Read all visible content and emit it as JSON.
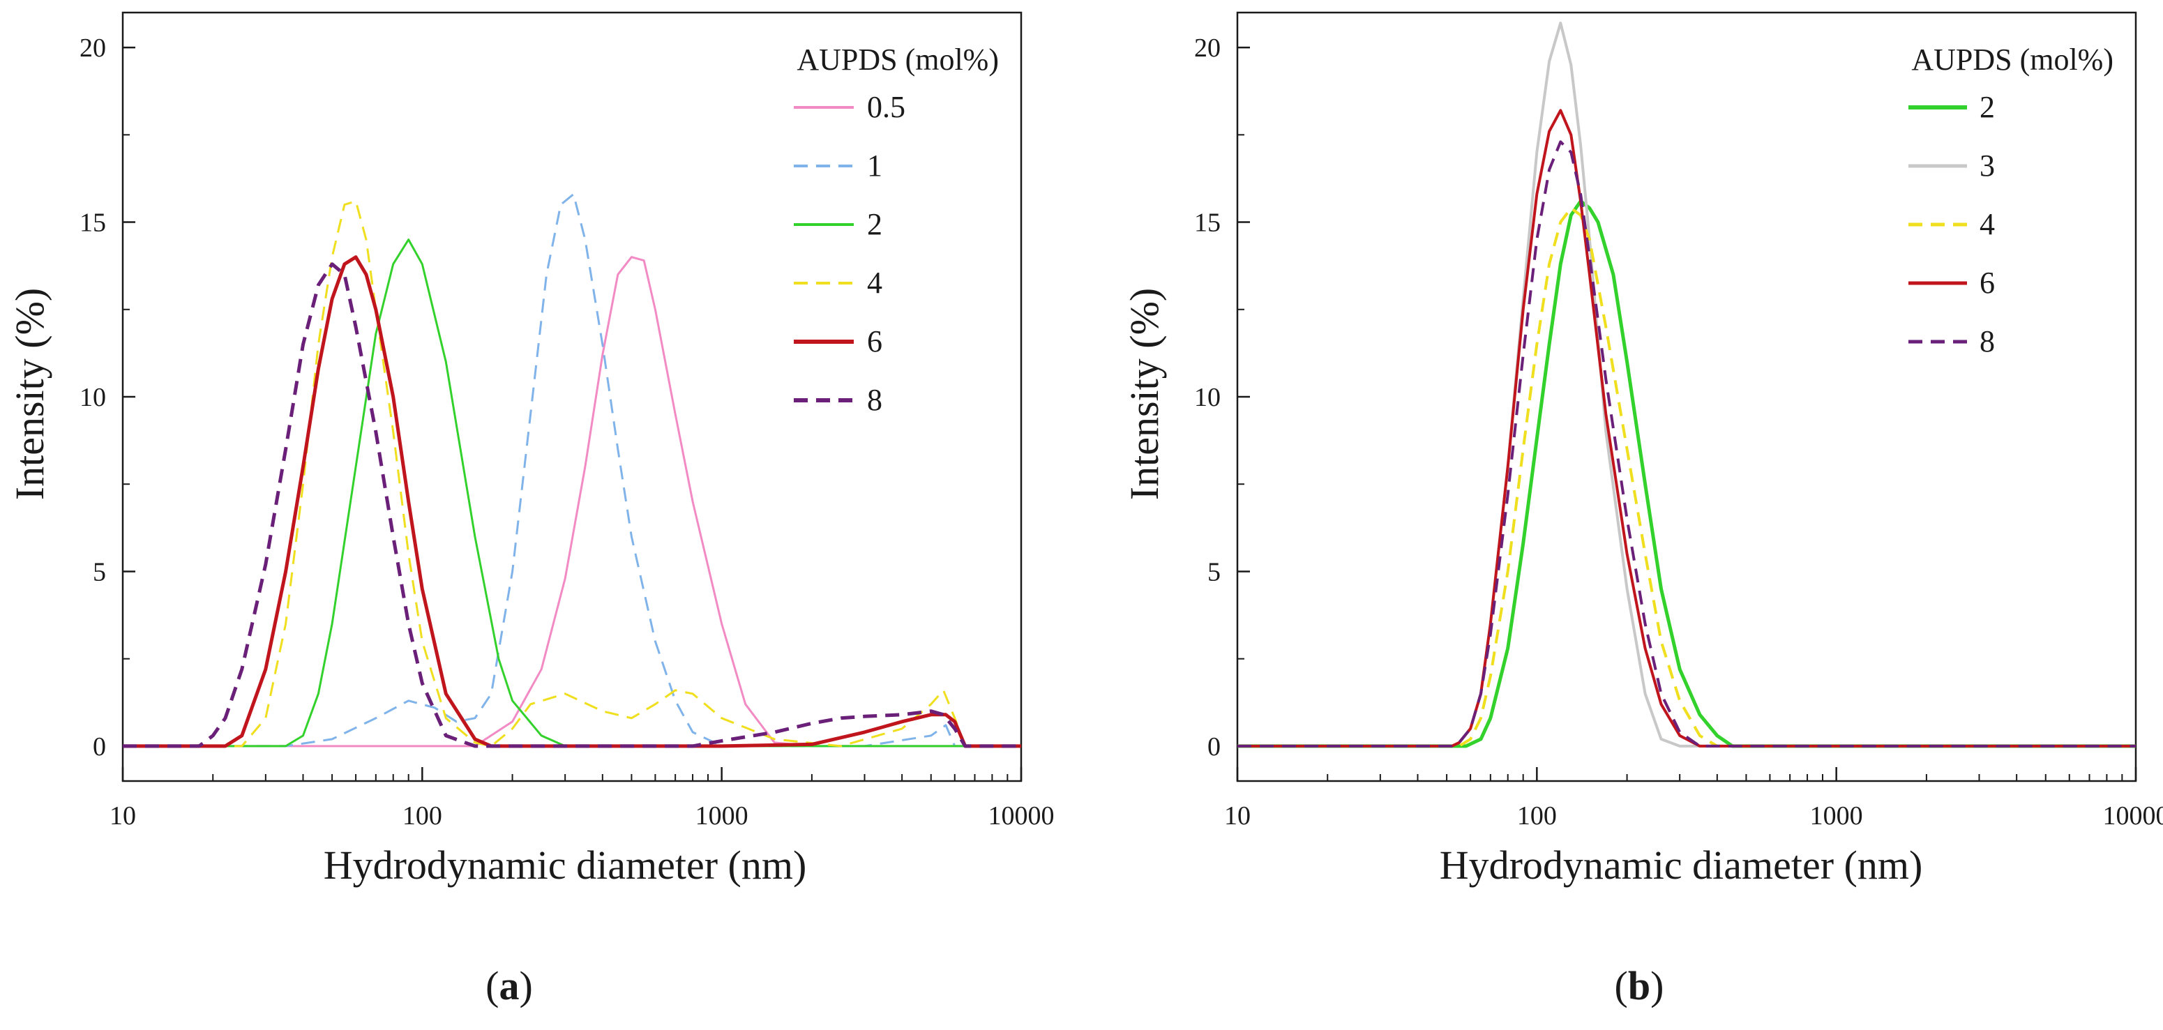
{
  "chart_data": [
    {
      "type": "line",
      "id": "a",
      "panel_label": {
        "open": "(",
        "letter": "a",
        "close": ")"
      },
      "xlabel": "Hydrodynamic diameter (nm)",
      "ylabel": "Intensity (%)",
      "xscale": "log",
      "xlim": [
        10,
        10000
      ],
      "ylim": [
        -1,
        21
      ],
      "xticks": [
        10,
        100,
        1000,
        10000
      ],
      "xtick_labels": [
        "10",
        "100",
        "1000",
        "10000"
      ],
      "yticks": [
        0,
        5,
        10,
        15,
        20
      ],
      "ytick_labels": [
        "0",
        "5",
        "10",
        "15",
        "20"
      ],
      "legend_title": "AUPDS (mol%)",
      "legend_position": "top-right",
      "series": [
        {
          "name": "0.5",
          "color": "#f28ac4",
          "dash": "solid",
          "width": 3,
          "x": [
            10,
            150,
            200,
            250,
            300,
            350,
            400,
            450,
            500,
            550,
            600,
            700,
            800,
            1000,
            1200,
            1500,
            2000,
            10000
          ],
          "y": [
            0,
            0,
            0.7,
            2.2,
            4.8,
            8.0,
            11.2,
            13.5,
            14.0,
            13.9,
            12.5,
            9.5,
            7.0,
            3.5,
            1.2,
            0.1,
            0,
            0
          ]
        },
        {
          "name": "1",
          "color": "#7fb3ea",
          "dash": "dashed",
          "width": 3,
          "x": [
            10,
            35,
            50,
            70,
            90,
            110,
            130,
            150,
            170,
            200,
            230,
            260,
            290,
            320,
            350,
            400,
            450,
            500,
            600,
            700,
            800,
            1000,
            1500,
            3000,
            5000,
            5600,
            6000,
            10000
          ],
          "y": [
            0,
            0,
            0.2,
            0.8,
            1.3,
            1.1,
            0.7,
            0.8,
            1.5,
            5.0,
            9.5,
            13.5,
            15.5,
            15.8,
            14.5,
            11.5,
            8.5,
            6.0,
            3.0,
            1.3,
            0.4,
            0,
            0,
            0,
            0.3,
            0.6,
            0,
            0
          ]
        },
        {
          "name": "2",
          "color": "#33d12c",
          "dash": "solid",
          "width": 3,
          "x": [
            10,
            35,
            40,
            45,
            50,
            60,
            70,
            80,
            90,
            100,
            120,
            150,
            180,
            200,
            250,
            300,
            10000
          ],
          "y": [
            0,
            0,
            0.3,
            1.5,
            3.5,
            8.0,
            11.8,
            13.8,
            14.5,
            13.8,
            11.0,
            6.0,
            2.5,
            1.3,
            0.3,
            0,
            0
          ]
        },
        {
          "name": "4",
          "color": "#f0df1e",
          "dash": "dashed",
          "width": 3,
          "x": [
            10,
            25,
            30,
            35,
            40,
            45,
            50,
            55,
            60,
            65,
            70,
            80,
            90,
            100,
            120,
            150,
            170,
            200,
            230,
            300,
            400,
            500,
            600,
            700,
            800,
            1000,
            1500,
            2500,
            4000,
            5000,
            5500,
            6000,
            6500,
            10000
          ],
          "y": [
            0,
            0,
            0.8,
            3.5,
            7.5,
            11.5,
            14.0,
            15.5,
            15.6,
            14.5,
            12.5,
            9.0,
            5.5,
            3.0,
            0.8,
            0.1,
            0,
            0.5,
            1.2,
            1.5,
            1.0,
            0.8,
            1.2,
            1.6,
            1.5,
            0.8,
            0.2,
            0,
            0.5,
            1.2,
            1.6,
            0.8,
            0,
            0
          ]
        },
        {
          "name": "6",
          "color": "#c0151c",
          "dash": "solid",
          "width": 5,
          "x": [
            10,
            22,
            25,
            30,
            35,
            40,
            45,
            50,
            55,
            60,
            65,
            70,
            80,
            90,
            100,
            120,
            150,
            170,
            200,
            1000,
            2000,
            3000,
            4000,
            5000,
            5600,
            6000,
            6500,
            10000
          ],
          "y": [
            0,
            0,
            0.3,
            2.2,
            5.0,
            8.0,
            10.8,
            12.8,
            13.8,
            14.0,
            13.5,
            12.5,
            10.0,
            7.0,
            4.5,
            1.5,
            0.2,
            0,
            0,
            0,
            0.05,
            0.4,
            0.7,
            0.9,
            0.9,
            0.7,
            0,
            0
          ]
        },
        {
          "name": "8",
          "color": "#6a1f78",
          "dash": "dashed",
          "width": 5,
          "x": [
            10,
            18,
            20,
            22,
            25,
            30,
            35,
            40,
            45,
            50,
            55,
            60,
            70,
            80,
            90,
            100,
            120,
            150,
            200,
            800,
            1000,
            1500,
            2000,
            2500,
            3000,
            4000,
            5000,
            5500,
            6000,
            6500,
            10000
          ],
          "y": [
            0,
            0,
            0.3,
            0.8,
            2.2,
            5.2,
            8.5,
            11.5,
            13.2,
            13.8,
            13.5,
            12.0,
            9.0,
            6.0,
            3.5,
            1.8,
            0.3,
            0,
            0,
            0,
            0.15,
            0.4,
            0.65,
            0.8,
            0.85,
            0.9,
            1.0,
            0.9,
            0.5,
            0,
            0
          ]
        }
      ]
    },
    {
      "type": "line",
      "id": "b",
      "panel_label": {
        "open": "(",
        "letter": "b",
        "close": ")"
      },
      "xlabel": "Hydrodynamic diameter (nm)",
      "ylabel": "Intensity (%)",
      "xscale": "log",
      "xlim": [
        10,
        10000
      ],
      "ylim": [
        -1,
        21
      ],
      "xticks": [
        10,
        100,
        1000,
        10000
      ],
      "xtick_labels": [
        "10",
        "100",
        "1000",
        "10000"
      ],
      "yticks": [
        0,
        5,
        10,
        15,
        20
      ],
      "ytick_labels": [
        "0",
        "5",
        "10",
        "15",
        "20"
      ],
      "legend_title": "AUPDS (mol%)",
      "legend_position": "top-right",
      "series": [
        {
          "name": "2",
          "color": "#33d12c",
          "dash": "solid",
          "width": 5,
          "x": [
            10,
            58,
            65,
            70,
            80,
            90,
            100,
            110,
            120,
            130,
            140,
            150,
            160,
            180,
            200,
            230,
            260,
            300,
            350,
            400,
            450,
            10000
          ],
          "y": [
            0,
            0,
            0.2,
            0.8,
            2.8,
            5.8,
            8.8,
            11.5,
            13.8,
            15.2,
            15.6,
            15.4,
            15.0,
            13.5,
            11.0,
            7.5,
            4.5,
            2.2,
            0.9,
            0.3,
            0,
            0
          ]
        },
        {
          "name": "3",
          "color": "#c8c8c8",
          "dash": "solid",
          "width": 4,
          "x": [
            10,
            52,
            55,
            60,
            65,
            70,
            80,
            90,
            100,
            110,
            120,
            130,
            140,
            150,
            170,
            200,
            230,
            260,
            300,
            10000
          ],
          "y": [
            0,
            0,
            0.1,
            0.5,
            1.5,
            3.5,
            8.0,
            12.8,
            17.0,
            19.6,
            20.7,
            19.5,
            17.2,
            14.5,
            9.0,
            4.5,
            1.5,
            0.2,
            0,
            0
          ]
        },
        {
          "name": "4",
          "color": "#f0df1e",
          "dash": "dashed",
          "width": 4,
          "x": [
            10,
            55,
            60,
            65,
            70,
            80,
            90,
            100,
            110,
            120,
            130,
            140,
            150,
            170,
            200,
            230,
            260,
            300,
            350,
            400,
            10000
          ],
          "y": [
            0,
            0,
            0.2,
            0.8,
            2.0,
            5.0,
            8.5,
            11.5,
            13.8,
            15.0,
            15.4,
            15.2,
            14.5,
            12.0,
            8.5,
            5.5,
            3.0,
            1.3,
            0.3,
            0,
            0
          ]
        },
        {
          "name": "6",
          "color": "#c0151c",
          "dash": "solid",
          "width": 4,
          "x": [
            10,
            52,
            55,
            60,
            65,
            70,
            80,
            90,
            100,
            110,
            120,
            130,
            140,
            150,
            170,
            200,
            230,
            260,
            300,
            350,
            10000
          ],
          "y": [
            0,
            0,
            0.1,
            0.5,
            1.5,
            3.5,
            8.0,
            12.5,
            15.8,
            17.6,
            18.2,
            17.5,
            15.6,
            13.5,
            9.5,
            5.5,
            2.8,
            1.2,
            0.3,
            0,
            0
          ]
        },
        {
          "name": "8",
          "color": "#6a1f78",
          "dash": "dashed",
          "width": 4,
          "x": [
            10,
            52,
            55,
            60,
            65,
            70,
            80,
            90,
            100,
            110,
            120,
            130,
            140,
            150,
            170,
            200,
            230,
            260,
            300,
            350,
            10000
          ],
          "y": [
            0,
            0,
            0.1,
            0.5,
            1.5,
            3.2,
            7.2,
            11.2,
            14.5,
            16.5,
            17.3,
            17.0,
            15.8,
            14.0,
            10.5,
            6.5,
            3.5,
            1.5,
            0.4,
            0,
            0
          ]
        }
      ]
    }
  ]
}
